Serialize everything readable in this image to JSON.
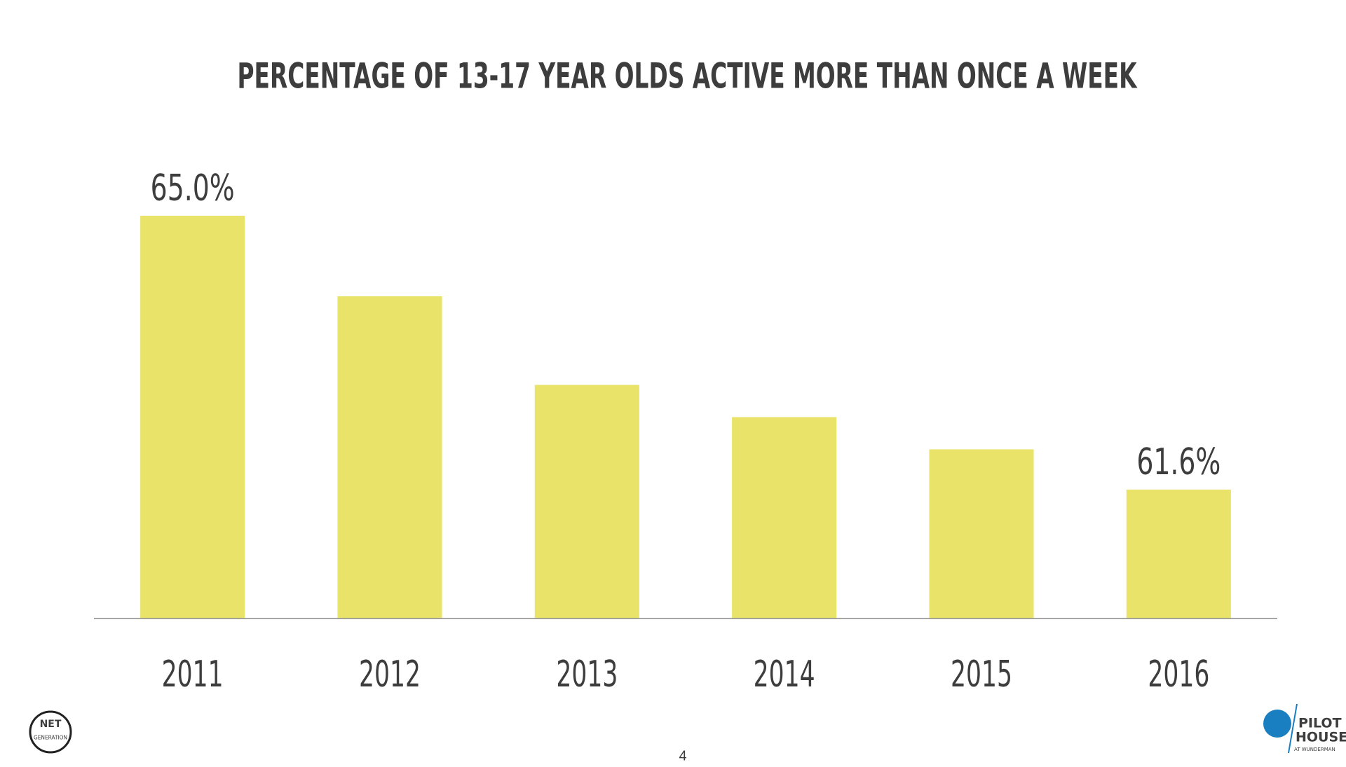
{
  "chart_data": {
    "type": "bar",
    "title": "PERCENTAGE OF 13-17 YEAR OLDS ACTIVE MORE THAN ONCE A WEEK",
    "categories": [
      "2011",
      "2012",
      "2013",
      "2014",
      "2015",
      "2016"
    ],
    "values": [
      65.0,
      64.0,
      62.9,
      62.5,
      62.1,
      61.6
    ],
    "value_labels": [
      "65.0%",
      null,
      null,
      null,
      null,
      "61.6%"
    ],
    "color": "#e9e36a",
    "ylim": [
      60,
      66
    ],
    "grid": false
  },
  "page_number": "4",
  "logos": {
    "left": [
      "NET",
      "GENERATION"
    ],
    "right": [
      "PILOT",
      "HOUSE",
      "AT WUNDERMAN"
    ]
  }
}
